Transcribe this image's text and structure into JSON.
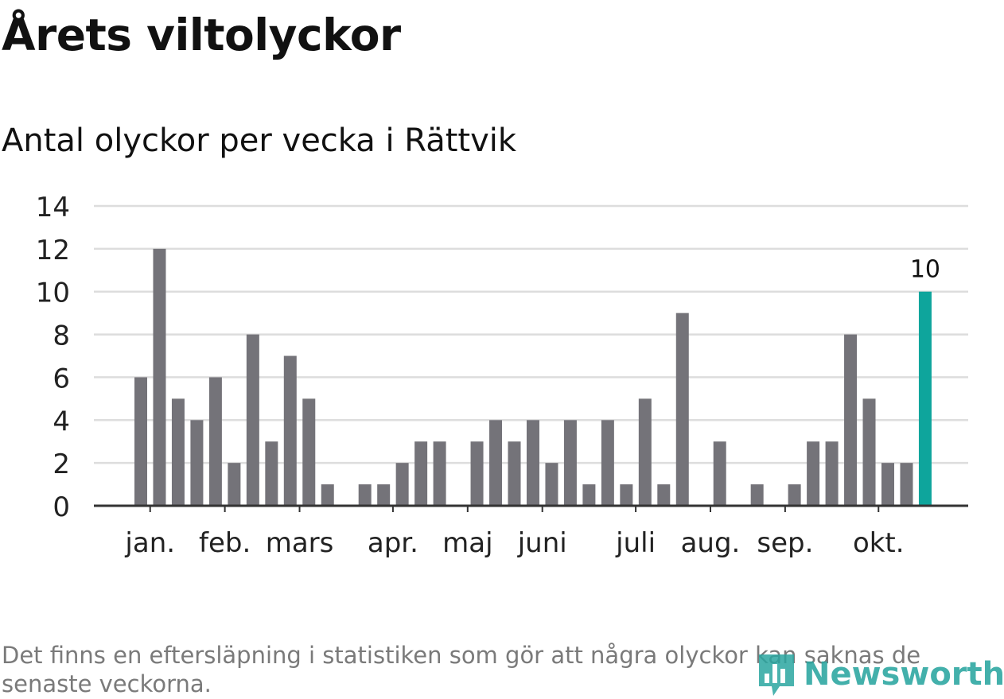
{
  "title": "Årets viltolyckor",
  "subtitle": "Antal olyckor per vecka i Rättvik",
  "note": "Det finns en eftersläpning i statistiken som gör att några olyckor kan saknas de senaste veckorna.",
  "logo": {
    "text": "Newsworthy",
    "icon": "bar-chart-logo-icon"
  },
  "colors": {
    "bar": "#747379",
    "highlight": "#0ea59c",
    "grid": "#dddddd",
    "axis": "#333333",
    "text": "#222222"
  },
  "chart_data": {
    "type": "bar",
    "ylim": [
      0,
      14
    ],
    "yticks": [
      0,
      2,
      4,
      6,
      8,
      10,
      12,
      14
    ],
    "grid": true,
    "values": [
      6,
      12,
      5,
      4,
      6,
      2,
      8,
      3,
      7,
      5,
      1,
      0,
      1,
      1,
      2,
      3,
      3,
      0,
      3,
      4,
      3,
      4,
      2,
      4,
      1,
      4,
      1,
      5,
      1,
      9,
      0,
      3,
      0,
      1,
      0,
      1,
      3,
      3,
      8,
      5,
      2,
      2,
      10
    ],
    "highlight_last": true,
    "last_label": "10",
    "month_labels": [
      {
        "label": "jan.",
        "week": 0.5
      },
      {
        "label": "feb.",
        "week": 4.5
      },
      {
        "label": "mars",
        "week": 8.5
      },
      {
        "label": "apr.",
        "week": 13.5
      },
      {
        "label": "maj",
        "week": 17.5
      },
      {
        "label": "juni",
        "week": 21.5
      },
      {
        "label": "juli",
        "week": 26.5
      },
      {
        "label": "aug.",
        "week": 30.5
      },
      {
        "label": "sep.",
        "week": 34.5
      },
      {
        "label": "okt.",
        "week": 39.5
      }
    ]
  }
}
